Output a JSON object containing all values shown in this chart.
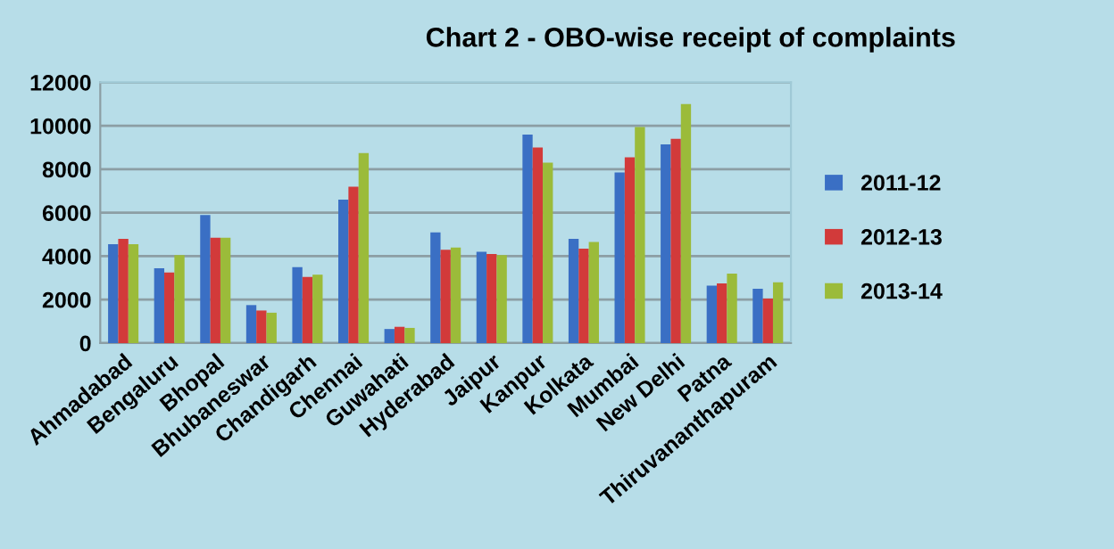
{
  "chart_data": {
    "type": "bar",
    "title": "Chart 2 - OBO-wise receipt of complaints",
    "categories": [
      "Ahmadabad",
      "Bengaluru",
      "Bhopal",
      "Bhubaneswar",
      "Chandigarh",
      "Chennai",
      "Guwahati",
      "Hyderabad",
      "Jaipur",
      "Kanpur",
      "Kolkata",
      "Mumbai",
      "New Delhi",
      "Patna",
      "Thiruvananthapuram"
    ],
    "series": [
      {
        "name": "2011-12",
        "color": "#3a6fc4",
        "values": [
          4550,
          3450,
          5900,
          1750,
          3500,
          6600,
          650,
          5100,
          4200,
          9600,
          4800,
          7850,
          9150,
          2650,
          2500
        ]
      },
      {
        "name": "2012-13",
        "color": "#d23a3a",
        "values": [
          4800,
          3250,
          4850,
          1500,
          3050,
          7200,
          750,
          4300,
          4100,
          9000,
          4350,
          8550,
          9400,
          2750,
          2050
        ]
      },
      {
        "name": "2013-14",
        "color": "#9bbb3a",
        "values": [
          4550,
          4050,
          4850,
          1400,
          3150,
          8750,
          700,
          4400,
          4050,
          8300,
          4650,
          9950,
          11000,
          3200,
          2800
        ]
      }
    ],
    "ylim": [
      0,
      12000
    ],
    "yticks": [
      0,
      2000,
      4000,
      6000,
      8000,
      10000,
      12000
    ],
    "grid": "y",
    "legend": "right"
  }
}
